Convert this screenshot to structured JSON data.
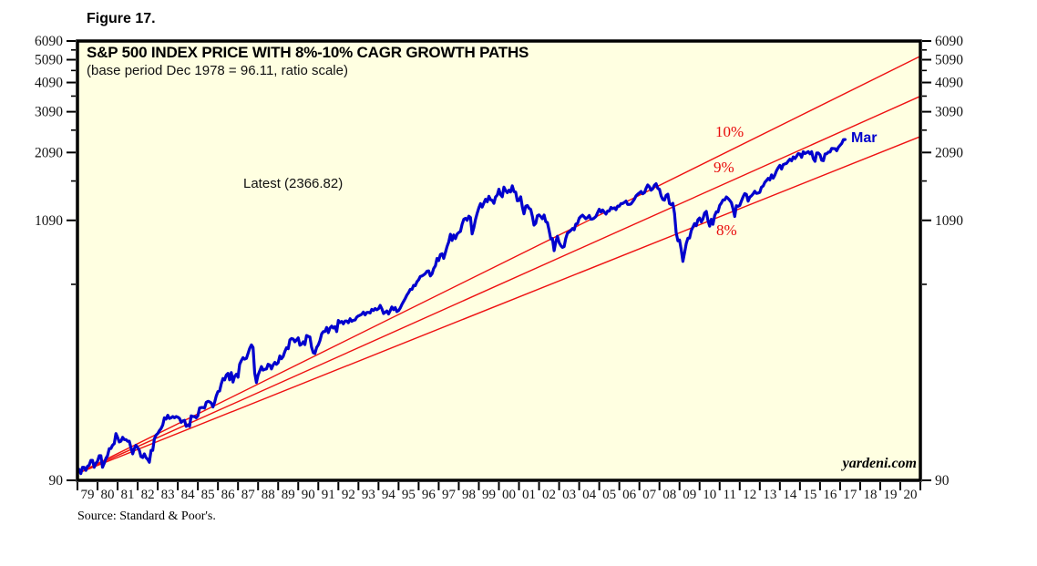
{
  "figure_label": "Figure 17.",
  "chart": {
    "title": "S&P 500 INDEX PRICE WITH 8%-10% CAGR GROWTH PATHS",
    "subtitle": "(base period Dec 1978 = 96.11, ratio scale)",
    "latest_label": "Latest (2366.82)",
    "end_label": "Mar",
    "watermark": "yardeni.com",
    "path_labels": [
      "10%",
      "9%",
      "8%"
    ],
    "colors": {
      "plot_background": "#FFFFE1",
      "frame": "#000000",
      "series": "#0000CD",
      "growth_paths": "#EE1111",
      "path_label_text": "#E80B0B",
      "end_label_text": "#0000CD"
    }
  },
  "source": "Source: Standard & Poor's.",
  "chart_data": {
    "type": "line",
    "title": "S&P 500 INDEX PRICE WITH 8%-10% CAGR GROWTH PATHS",
    "subtitle": "(base period Dec 1978 = 96.11, ratio scale)",
    "y_axis": {
      "scale": "log",
      "range": [
        90,
        6090
      ],
      "major_ticks": [
        90,
        1090,
        2090,
        3090,
        4090,
        5090,
        6090
      ],
      "minor_ticks": [
        590,
        1590,
        2590,
        3590,
        4590,
        5590
      ],
      "sides": [
        "left",
        "right"
      ]
    },
    "x_axis": {
      "start": "Dec 1978",
      "end": "Dec 2020",
      "total_months": 504,
      "tick_labels": [
        "79",
        "80",
        "81",
        "82",
        "83",
        "84",
        "85",
        "86",
        "87",
        "88",
        "89",
        "90",
        "91",
        "92",
        "93",
        "94",
        "95",
        "96",
        "97",
        "98",
        "99",
        "00",
        "01",
        "02",
        "03",
        "04",
        "05",
        "06",
        "07",
        "08",
        "09",
        "10",
        "11",
        "12",
        "13",
        "14",
        "15",
        "16",
        "17",
        "18",
        "19",
        "20"
      ]
    },
    "series": [
      {
        "name": "S&P 500 Index",
        "color": "#0000CD",
        "start": "1979-01",
        "frequency": "monthly",
        "latest_value": 2366.82,
        "latest_period": "Mar 2017",
        "values": [
          100,
          96,
          102,
          102,
          99,
          103,
          104,
          109,
          109,
          102,
          106,
          108,
          114,
          114,
          102,
          106,
          111,
          114,
          122,
          122,
          126,
          128,
          141,
          136,
          130,
          131,
          136,
          133,
          133,
          131,
          131,
          123,
          116,
          122,
          126,
          123,
          120,
          113,
          112,
          116,
          112,
          110,
          107,
          120,
          120,
          134,
          139,
          141,
          145,
          148,
          153,
          164,
          162,
          168,
          163,
          164,
          166,
          164,
          166,
          165,
          163,
          157,
          159,
          160,
          151,
          153,
          151,
          167,
          166,
          166,
          164,
          167,
          180,
          181,
          181,
          180,
          190,
          192,
          191,
          189,
          182,
          190,
          202,
          211,
          212,
          227,
          239,
          236,
          247,
          251,
          236,
          253,
          231,
          244,
          249,
          242,
          274,
          284,
          292,
          288,
          290,
          304,
          319,
          330,
          322,
          252,
          230,
          247,
          257,
          268,
          259,
          261,
          262,
          274,
          272,
          262,
          272,
          279,
          274,
          278,
          297,
          289,
          295,
          310,
          321,
          318,
          346,
          351,
          349,
          340,
          346,
          353,
          329,
          332,
          340,
          331,
          361,
          358,
          356,
          323,
          306,
          304,
          322,
          330,
          344,
          367,
          375,
          375,
          390,
          371,
          388,
          395,
          388,
          393,
          375,
          417,
          409,
          413,
          404,
          415,
          415,
          408,
          424,
          414,
          418,
          419,
          431,
          436,
          439,
          443,
          452,
          440,
          450,
          451,
          448,
          464,
          459,
          468,
          462,
          467,
          482,
          467,
          446,
          451,
          457,
          444,
          458,
          475,
          463,
          472,
          454,
          459,
          470,
          487,
          501,
          515,
          533,
          545,
          562,
          562,
          584,
          582,
          605,
          616,
          636,
          640,
          646,
          654,
          669,
          671,
          640,
          652,
          687,
          705,
          757,
          741,
          786,
          791,
          757,
          801,
          848,
          885,
          954,
          899,
          947,
          915,
          955,
          970,
          980,
          1049,
          1102,
          1112,
          1091,
          1134,
          1121,
          957,
          1017,
          1099,
          1164,
          1229,
          1280,
          1238,
          1286,
          1335,
          1302,
          1373,
          1329,
          1320,
          1283,
          1363,
          1389,
          1469,
          1394,
          1366,
          1499,
          1452,
          1421,
          1455,
          1431,
          1518,
          1437,
          1429,
          1315,
          1320,
          1366,
          1240,
          1160,
          1249,
          1256,
          1224,
          1211,
          1134,
          1041,
          1060,
          1139,
          1148,
          1130,
          1107,
          1147,
          1077,
          1067,
          990,
          912,
          916,
          815,
          886,
          936,
          880,
          856,
          841,
          848,
          917,
          964,
          975,
          990,
          1008,
          996,
          1051,
          1058,
          1112,
          1131,
          1145,
          1126,
          1107,
          1121,
          1141,
          1102,
          1104,
          1115,
          1130,
          1174,
          1212,
          1181,
          1204,
          1181,
          1157,
          1192,
          1191,
          1234,
          1220,
          1229,
          1207,
          1250,
          1248,
          1280,
          1281,
          1295,
          1311,
          1270,
          1270,
          1277,
          1304,
          1336,
          1378,
          1401,
          1418,
          1438,
          1407,
          1421,
          1482,
          1531,
          1503,
          1455,
          1474,
          1527,
          1549,
          1481,
          1468,
          1379,
          1331,
          1323,
          1386,
          1400,
          1280,
          1267,
          1283,
          1166,
          969,
          896,
          903,
          826,
          735,
          798,
          873,
          919,
          919,
          988,
          1021,
          1057,
          1036,
          1096,
          1115,
          1074,
          1105,
          1169,
          1187,
          1089,
          1031,
          1102,
          1049,
          1141,
          1183,
          1181,
          1258,
          1286,
          1327,
          1326,
          1364,
          1345,
          1321,
          1292,
          1219,
          1131,
          1253,
          1247,
          1258,
          1312,
          1366,
          1409,
          1398,
          1310,
          1362,
          1379,
          1407,
          1441,
          1412,
          1416,
          1426,
          1498,
          1515,
          1569,
          1598,
          1631,
          1606,
          1686,
          1633,
          1682,
          1757,
          1806,
          1848,
          1783,
          1860,
          1872,
          1884,
          1924,
          1960,
          1931,
          2003,
          1972,
          2018,
          2068,
          2059,
          1995,
          2105,
          2068,
          2086,
          2107,
          2063,
          2104,
          1972,
          1920,
          2079,
          2080,
          2044,
          1940,
          1932,
          2060,
          2065,
          2097,
          2099,
          2174,
          2171,
          2168,
          2126,
          2199,
          2239,
          2279,
          2364,
          2366.82
        ]
      }
    ],
    "growth_paths": {
      "base_value": 96.11,
      "base_period": "Dec 1978",
      "end_period": "Dec 2020",
      "rates_pct": [
        10,
        9,
        8
      ],
      "color": "#EE1111"
    },
    "annotations": [
      {
        "text": "Latest (2366.82)",
        "refers_to": "S&P 500 latest close"
      },
      {
        "text": "Mar",
        "refers_to": "last plotted month"
      },
      {
        "text": "10%",
        "refers_to": "10% CAGR path"
      },
      {
        "text": "9%",
        "refers_to": "9% CAGR path"
      },
      {
        "text": "8%",
        "refers_to": "8% CAGR path"
      },
      {
        "text": "yardeni.com",
        "refers_to": "watermark"
      }
    ],
    "legend": "none",
    "grid": "off"
  }
}
